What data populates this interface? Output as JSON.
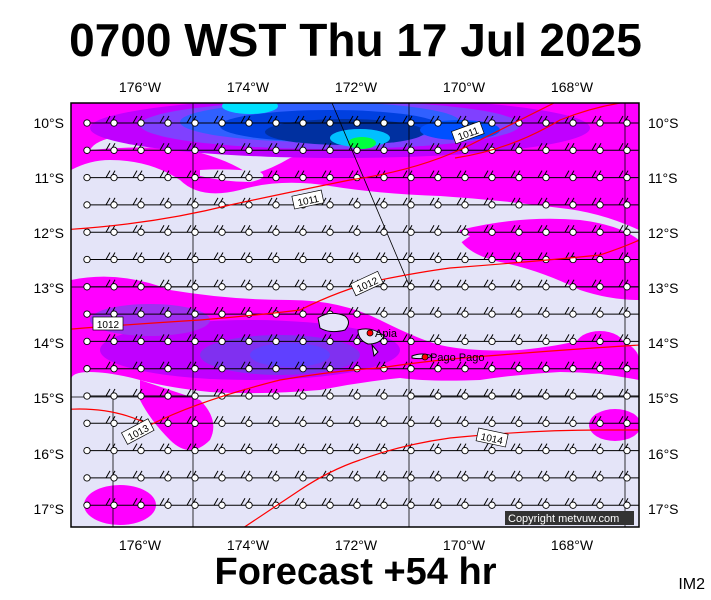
{
  "title": "0700 WST Thu 17 Jul 2025",
  "footer": "Forecast +54 hr",
  "corner_label": "IM2",
  "copyright": "Copyright metvuw.com",
  "axes": {
    "lon_labels": [
      "176°W",
      "174°W",
      "172°W",
      "170°W",
      "168°W"
    ],
    "lat_labels": [
      "10°S",
      "11°S",
      "12°S",
      "13°S",
      "14°S",
      "15°S",
      "16°S",
      "17°S"
    ]
  },
  "isobars": [
    {
      "label": "1011",
      "label2": "1011"
    },
    {
      "label": "1012",
      "label2": "1012"
    },
    {
      "label": "1013"
    },
    {
      "label": "1014"
    }
  ],
  "places": [
    {
      "name": "Apia"
    },
    {
      "name": "Pago Pago"
    }
  ],
  "colors": {
    "background": "#e4e4f8",
    "rain_light": "#ff00ff",
    "rain_medium": "#c000ff",
    "rain_heavy": "#7030e0",
    "rain_blue": "#0050ff",
    "rain_cyan": "#00e0ff",
    "rain_green": "#00ff40",
    "isobar": "#ff0000",
    "wind_barb": "#000000"
  }
}
